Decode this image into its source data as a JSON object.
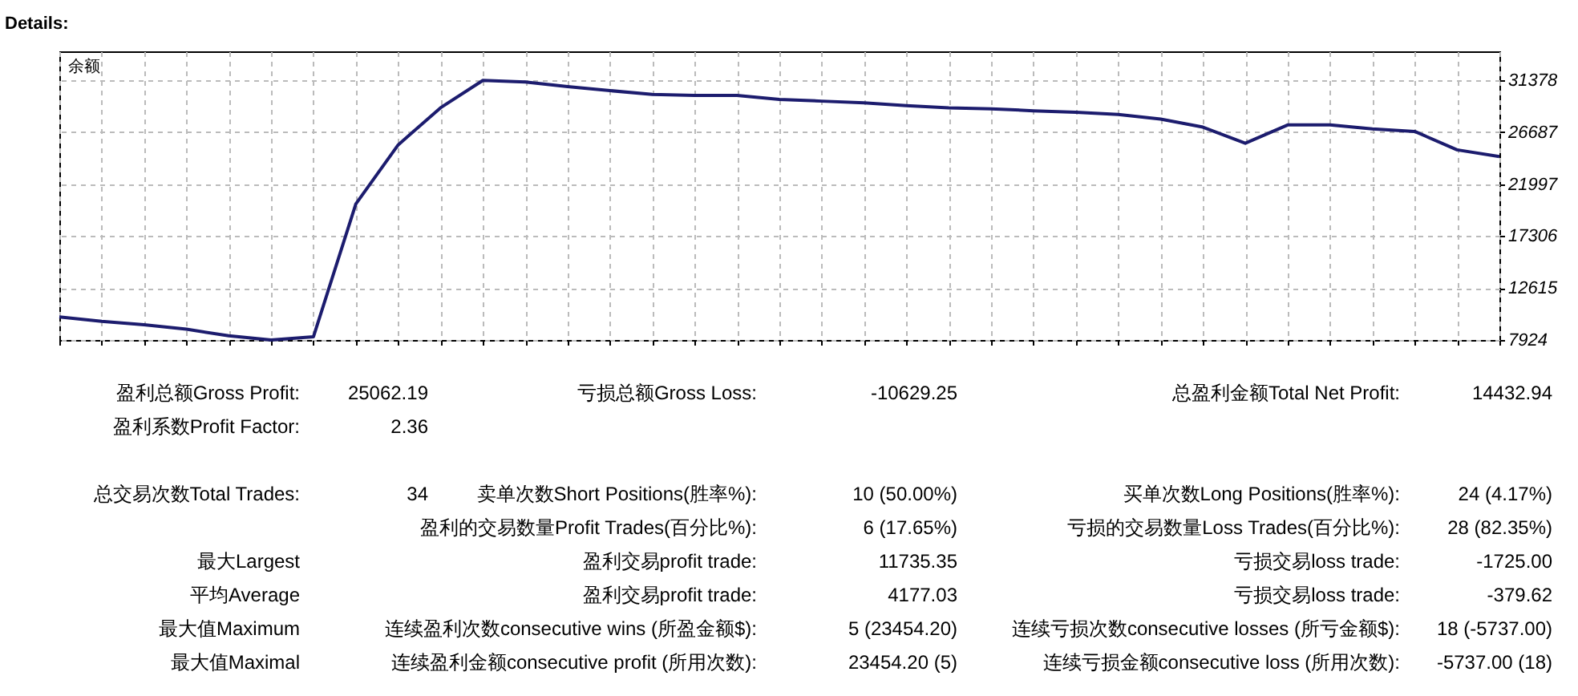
{
  "chart_data": [
    {
      "type": "line",
      "title": "Details:",
      "ylabel": "余额",
      "categories": [
        null,
        null,
        null,
        null,
        null,
        null,
        null,
        null,
        null,
        null,
        null,
        null,
        null,
        null,
        null,
        null,
        null,
        null,
        null,
        null,
        null,
        null,
        null,
        null,
        null,
        null,
        null,
        null,
        null,
        null,
        null,
        null,
        null,
        null,
        null
      ],
      "series": [
        {
          "color": "#1c1c6e",
          "values": [
            10000,
            9600,
            9300,
            8900,
            8300,
            7924,
            8215,
            20210,
            25551,
            28900,
            31378,
            31232,
            30810,
            30450,
            30100,
            30019,
            30019,
            29650,
            29500,
            29340,
            29100,
            28900,
            28805,
            28630,
            28500,
            28300,
            27880,
            27150,
            25697,
            27348,
            27348,
            27000,
            26765,
            25100,
            24500
          ]
        }
      ],
      "ylim": [
        7924,
        34000
      ],
      "yticks": [
        7924,
        12615,
        17306,
        21997,
        26687,
        31378
      ],
      "grid": true,
      "tick_labels": "y",
      "marker": "none",
      "line_style": "solid",
      "legend": false
    },
    {
      "type": "other",
      "annotations": [
        "盈利总额Gross Profit:",
        "25062.19",
        "亏损总额Gross Loss:",
        "-10629.25",
        "总盈利金额Total Net Profit:",
        "14432.94",
        "盈利系数Profit Factor:",
        "2.36",
        "总交易次数Total Trades:",
        "34",
        "卖单次数Short Positions(胜率%):",
        "10 (50.00%)",
        "买单次数Long Positions(胜率%):",
        "24 (4.17%)",
        "盈利的交易数量Profit Trades(百分比%):",
        "6 (17.65%)",
        "亏损的交易数量Loss Trades(百分比%):",
        "28 (82.35%)",
        "最大Largest",
        "盈利交易profit trade:",
        "11735.35",
        "亏损交易loss trade:",
        "-1725.00",
        "平均Average",
        "盈利交易profit trade:",
        "4177.03",
        "亏损交易loss trade:",
        "-379.62",
        "最大值Maximum",
        "连续盈利次数consecutive wins (所盈金额$):",
        "5 (23454.20)",
        "连续亏损次数consecutive losses (所亏金额$):",
        "18 (-5737.00)",
        "最大值Maximal",
        "连续盈利金额consecutive profit (所用次数):",
        "23454.20 (5)",
        "连续亏损金额consecutive loss (所用次数):",
        "-5737.00 (18)"
      ]
    }
  ]
}
